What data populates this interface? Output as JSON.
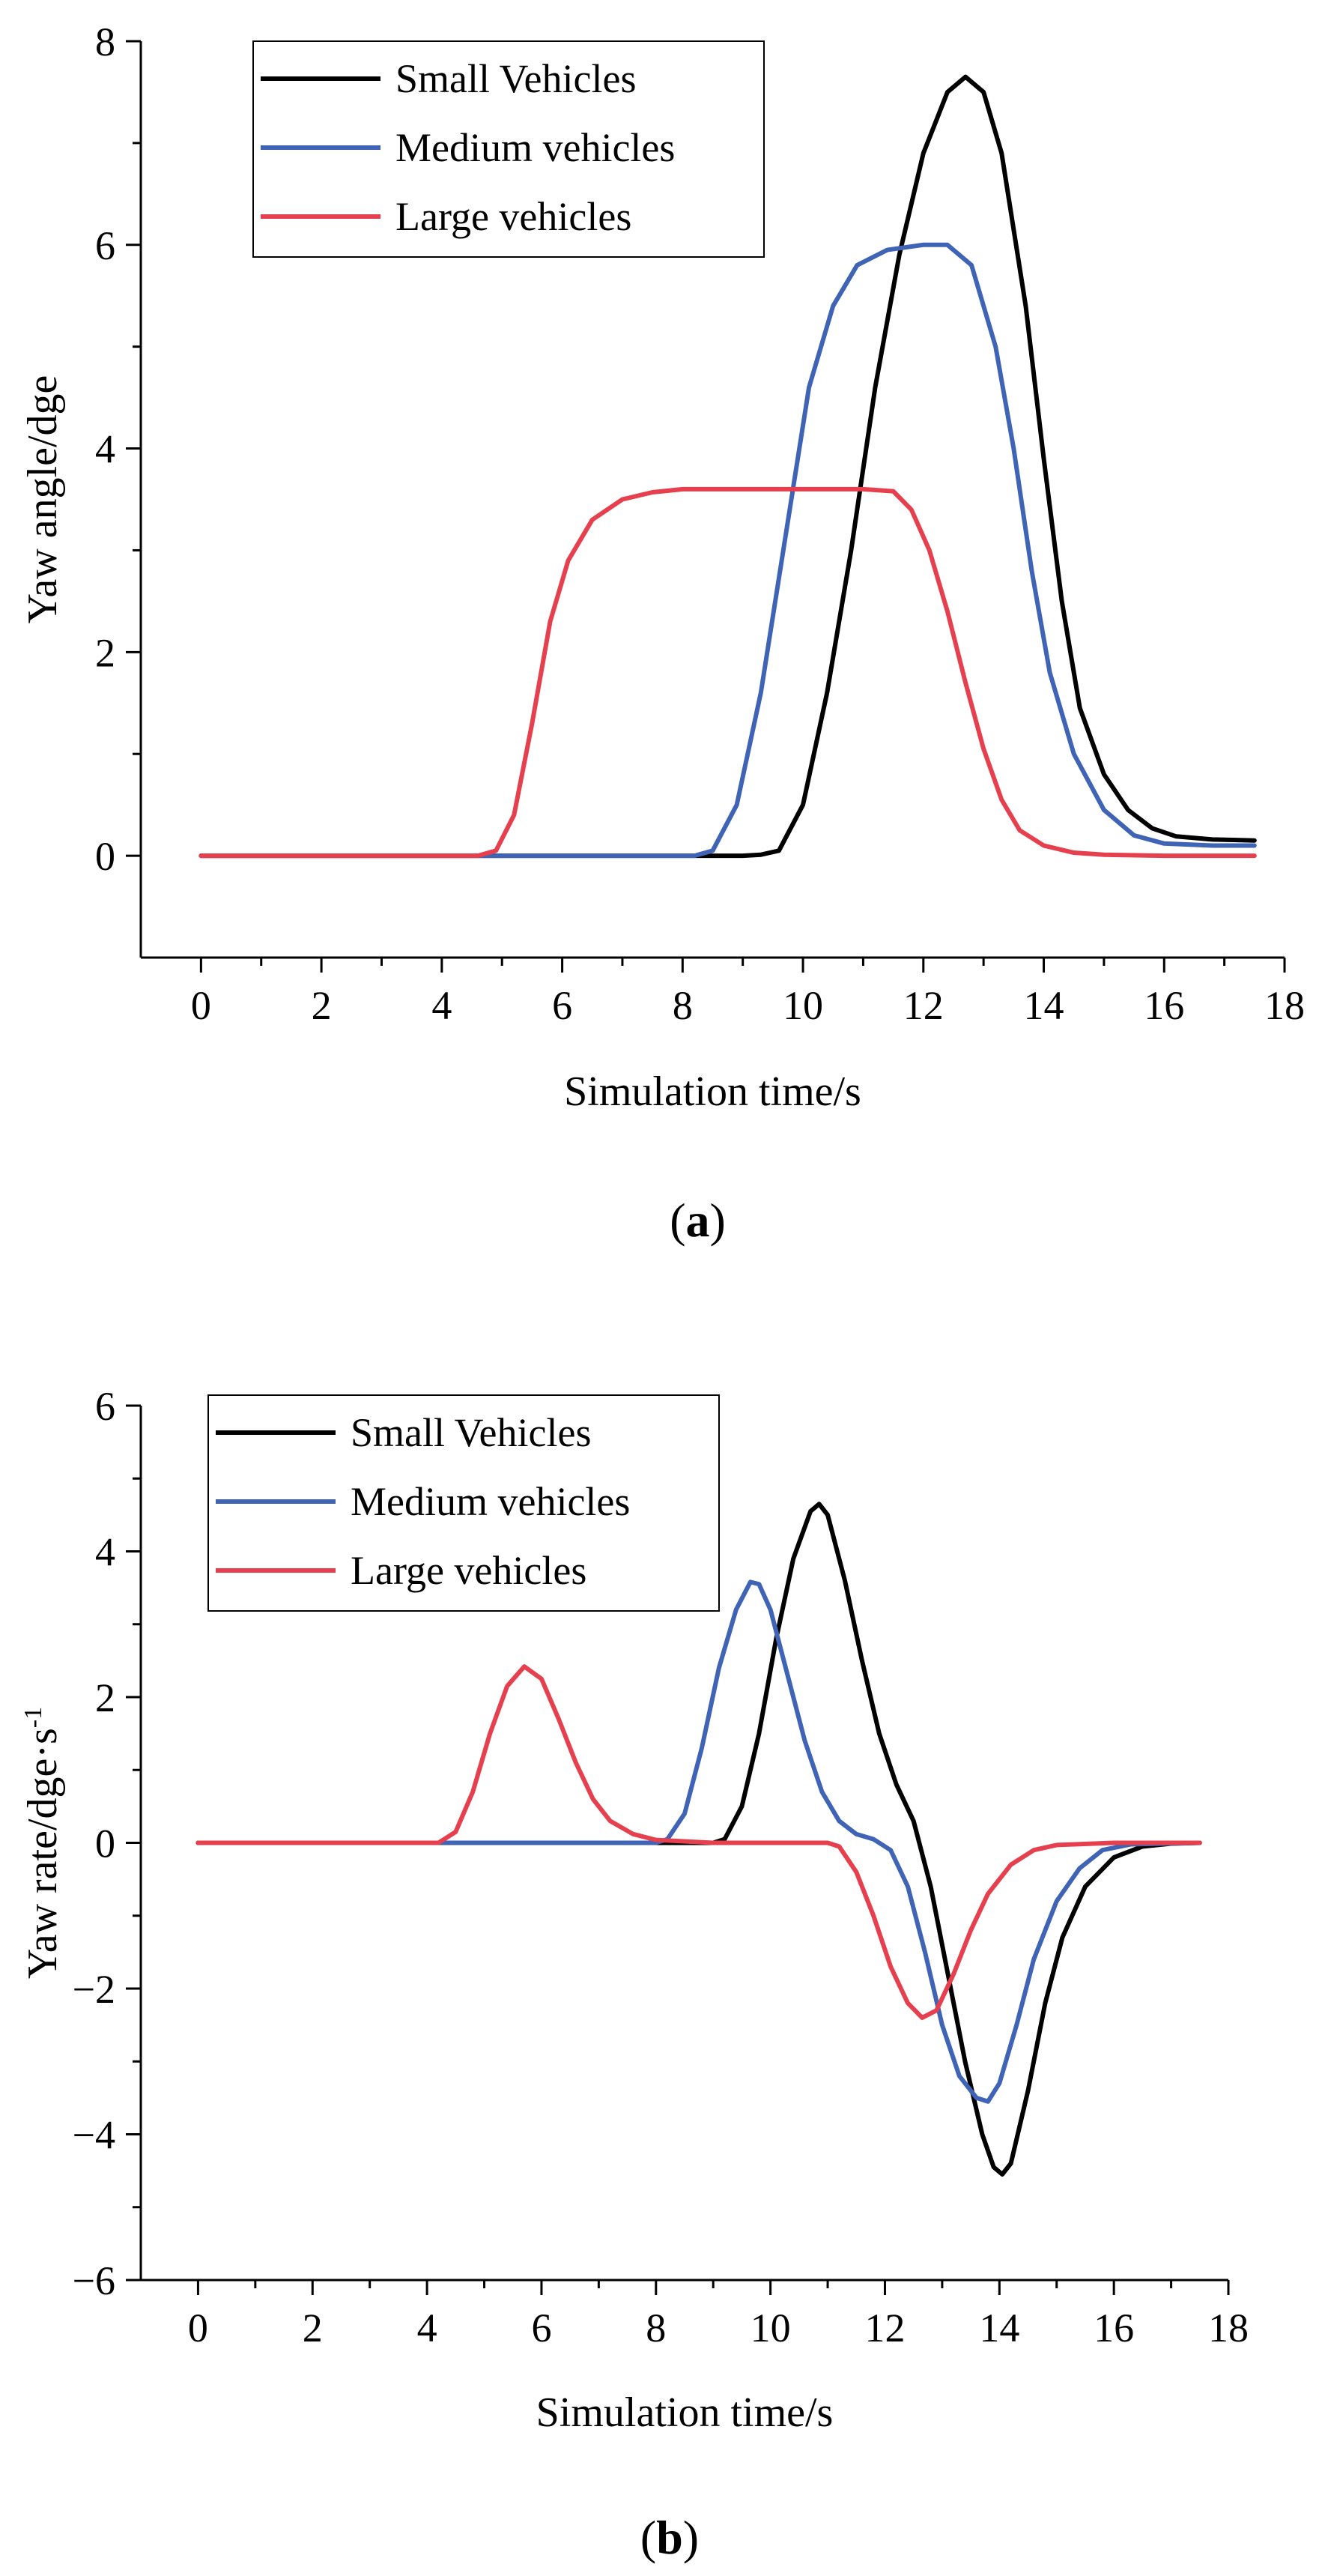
{
  "figure": {
    "panel_labels": [
      {
        "open": "(",
        "letter": "a",
        "close": ")"
      },
      {
        "open": "(",
        "letter": "b",
        "close": ")"
      }
    ]
  },
  "chart_data": [
    {
      "type": "line",
      "panel": "a",
      "title": "",
      "xlabel": "Simulation time/s",
      "ylabel": "Yaw angle/dge",
      "xlim": [
        -1,
        18
      ],
      "ylim": [
        -1,
        8
      ],
      "xticks": [
        0,
        2,
        4,
        6,
        8,
        10,
        12,
        14,
        16,
        18
      ],
      "xtick_labels": [
        "0",
        "2",
        "4",
        "6",
        "8",
        "10",
        "12",
        "14",
        "16",
        "18"
      ],
      "yticks": [
        0,
        2,
        4,
        6,
        8
      ],
      "ytick_labels": [
        "0",
        "2",
        "4",
        "6",
        "8"
      ],
      "grid": false,
      "legend_position": "top-left",
      "series": [
        {
          "name": "Small Vehicles",
          "color": "#000000",
          "points": [
            [
              0,
              0
            ],
            [
              4,
              0
            ],
            [
              8,
              0
            ],
            [
              9,
              0
            ],
            [
              9.3,
              0.01
            ],
            [
              9.6,
              0.05
            ],
            [
              10,
              0.5
            ],
            [
              10.4,
              1.6
            ],
            [
              10.8,
              3.0
            ],
            [
              11.2,
              4.6
            ],
            [
              11.6,
              5.9
            ],
            [
              12.0,
              6.9
            ],
            [
              12.4,
              7.5
            ],
            [
              12.7,
              7.65
            ],
            [
              13.0,
              7.5
            ],
            [
              13.3,
              6.9
            ],
            [
              13.7,
              5.4
            ],
            [
              14.0,
              3.9
            ],
            [
              14.3,
              2.5
            ],
            [
              14.6,
              1.45
            ],
            [
              15.0,
              0.8
            ],
            [
              15.4,
              0.45
            ],
            [
              15.8,
              0.27
            ],
            [
              16.2,
              0.19
            ],
            [
              16.8,
              0.16
            ],
            [
              17.5,
              0.15
            ]
          ]
        },
        {
          "name": "Medium vehicles",
          "color": "#3f63b5",
          "points": [
            [
              0,
              0
            ],
            [
              4,
              0
            ],
            [
              8,
              0
            ],
            [
              8.2,
              0
            ],
            [
              8.5,
              0.05
            ],
            [
              8.9,
              0.5
            ],
            [
              9.3,
              1.6
            ],
            [
              9.7,
              3.1
            ],
            [
              10.1,
              4.6
            ],
            [
              10.5,
              5.4
            ],
            [
              10.9,
              5.8
            ],
            [
              11.4,
              5.95
            ],
            [
              12.0,
              6.0
            ],
            [
              12.4,
              6.0
            ],
            [
              12.8,
              5.8
            ],
            [
              13.2,
              5.0
            ],
            [
              13.5,
              4.0
            ],
            [
              13.8,
              2.8
            ],
            [
              14.1,
              1.8
            ],
            [
              14.5,
              1.0
            ],
            [
              15.0,
              0.45
            ],
            [
              15.5,
              0.2
            ],
            [
              16.0,
              0.12
            ],
            [
              16.8,
              0.1
            ],
            [
              17.5,
              0.1
            ]
          ]
        },
        {
          "name": "Large vehicles",
          "color": "#e6404f",
          "points": [
            [
              0,
              0
            ],
            [
              4,
              0
            ],
            [
              4.6,
              0
            ],
            [
              4.9,
              0.05
            ],
            [
              5.2,
              0.4
            ],
            [
              5.5,
              1.3
            ],
            [
              5.8,
              2.3
            ],
            [
              6.1,
              2.9
            ],
            [
              6.5,
              3.3
            ],
            [
              7.0,
              3.5
            ],
            [
              7.5,
              3.57
            ],
            [
              8.0,
              3.6
            ],
            [
              9.0,
              3.6
            ],
            [
              10.0,
              3.6
            ],
            [
              11.0,
              3.6
            ],
            [
              11.5,
              3.58
            ],
            [
              11.8,
              3.4
            ],
            [
              12.1,
              3.0
            ],
            [
              12.4,
              2.4
            ],
            [
              12.7,
              1.7
            ],
            [
              13.0,
              1.05
            ],
            [
              13.3,
              0.55
            ],
            [
              13.6,
              0.25
            ],
            [
              14.0,
              0.1
            ],
            [
              14.5,
              0.03
            ],
            [
              15.0,
              0.01
            ],
            [
              16,
              0
            ],
            [
              17.5,
              0
            ]
          ]
        }
      ]
    },
    {
      "type": "line",
      "panel": "b",
      "title": "",
      "xlabel": "Simulation time/s",
      "ylabel_main": "Yaw rate/dge·s",
      "ylabel_sup": "-1",
      "xlim": [
        -1,
        18
      ],
      "ylim": [
        -6,
        6
      ],
      "xticks": [
        0,
        2,
        4,
        6,
        8,
        10,
        12,
        14,
        16,
        18
      ],
      "xtick_labels": [
        "0",
        "2",
        "4",
        "6",
        "8",
        "10",
        "12",
        "14",
        "16",
        "18"
      ],
      "yticks": [
        -6,
        -4,
        -2,
        0,
        2,
        4,
        6
      ],
      "ytick_labels": [
        "−6",
        "−4",
        "−2",
        "0",
        "2",
        "4",
        "6"
      ],
      "grid": false,
      "legend_position": "top-left",
      "series": [
        {
          "name": "Small Vehicles",
          "color": "#000000",
          "points": [
            [
              0,
              0
            ],
            [
              4,
              0
            ],
            [
              8,
              0
            ],
            [
              9,
              0
            ],
            [
              9.2,
              0.05
            ],
            [
              9.5,
              0.5
            ],
            [
              9.8,
              1.5
            ],
            [
              10.1,
              2.8
            ],
            [
              10.4,
              3.9
            ],
            [
              10.7,
              4.55
            ],
            [
              10.85,
              4.65
            ],
            [
              11.0,
              4.5
            ],
            [
              11.3,
              3.6
            ],
            [
              11.6,
              2.5
            ],
            [
              11.9,
              1.5
            ],
            [
              12.2,
              0.8
            ],
            [
              12.5,
              0.3
            ],
            [
              12.8,
              -0.6
            ],
            [
              13.1,
              -1.8
            ],
            [
              13.4,
              -3.0
            ],
            [
              13.7,
              -4.0
            ],
            [
              13.9,
              -4.45
            ],
            [
              14.05,
              -4.55
            ],
            [
              14.2,
              -4.4
            ],
            [
              14.5,
              -3.4
            ],
            [
              14.8,
              -2.2
            ],
            [
              15.1,
              -1.3
            ],
            [
              15.5,
              -0.6
            ],
            [
              16.0,
              -0.2
            ],
            [
              16.5,
              -0.05
            ],
            [
              17.0,
              -0.01
            ],
            [
              17.5,
              0
            ]
          ]
        },
        {
          "name": "Medium vehicles",
          "color": "#3f63b5",
          "points": [
            [
              0,
              0
            ],
            [
              4,
              0
            ],
            [
              8,
              0
            ],
            [
              8.2,
              0.05
            ],
            [
              8.5,
              0.4
            ],
            [
              8.8,
              1.3
            ],
            [
              9.1,
              2.4
            ],
            [
              9.4,
              3.2
            ],
            [
              9.65,
              3.58
            ],
            [
              9.8,
              3.55
            ],
            [
              10.0,
              3.2
            ],
            [
              10.3,
              2.3
            ],
            [
              10.6,
              1.4
            ],
            [
              10.9,
              0.7
            ],
            [
              11.2,
              0.3
            ],
            [
              11.5,
              0.12
            ],
            [
              11.8,
              0.05
            ],
            [
              12.1,
              -0.1
            ],
            [
              12.4,
              -0.6
            ],
            [
              12.7,
              -1.5
            ],
            [
              13.0,
              -2.5
            ],
            [
              13.3,
              -3.2
            ],
            [
              13.6,
              -3.5
            ],
            [
              13.8,
              -3.55
            ],
            [
              14.0,
              -3.3
            ],
            [
              14.3,
              -2.5
            ],
            [
              14.6,
              -1.6
            ],
            [
              15.0,
              -0.8
            ],
            [
              15.4,
              -0.35
            ],
            [
              15.8,
              -0.1
            ],
            [
              16.3,
              -0.02
            ],
            [
              17.5,
              0
            ]
          ]
        },
        {
          "name": "Large vehicles",
          "color": "#e6404f",
          "points": [
            [
              0,
              0
            ],
            [
              4,
              0
            ],
            [
              4.2,
              0
            ],
            [
              4.5,
              0.15
            ],
            [
              4.8,
              0.7
            ],
            [
              5.1,
              1.5
            ],
            [
              5.4,
              2.15
            ],
            [
              5.7,
              2.42
            ],
            [
              6.0,
              2.25
            ],
            [
              6.3,
              1.7
            ],
            [
              6.6,
              1.1
            ],
            [
              6.9,
              0.6
            ],
            [
              7.2,
              0.3
            ],
            [
              7.6,
              0.12
            ],
            [
              8.0,
              0.04
            ],
            [
              9,
              0
            ],
            [
              11,
              0
            ],
            [
              11.2,
              -0.05
            ],
            [
              11.5,
              -0.4
            ],
            [
              11.8,
              -1.0
            ],
            [
              12.1,
              -1.7
            ],
            [
              12.4,
              -2.2
            ],
            [
              12.65,
              -2.4
            ],
            [
              12.9,
              -2.3
            ],
            [
              13.2,
              -1.8
            ],
            [
              13.5,
              -1.2
            ],
            [
              13.8,
              -0.7
            ],
            [
              14.2,
              -0.3
            ],
            [
              14.6,
              -0.1
            ],
            [
              15.0,
              -0.03
            ],
            [
              16,
              0
            ],
            [
              17.5,
              0
            ]
          ]
        }
      ]
    }
  ]
}
